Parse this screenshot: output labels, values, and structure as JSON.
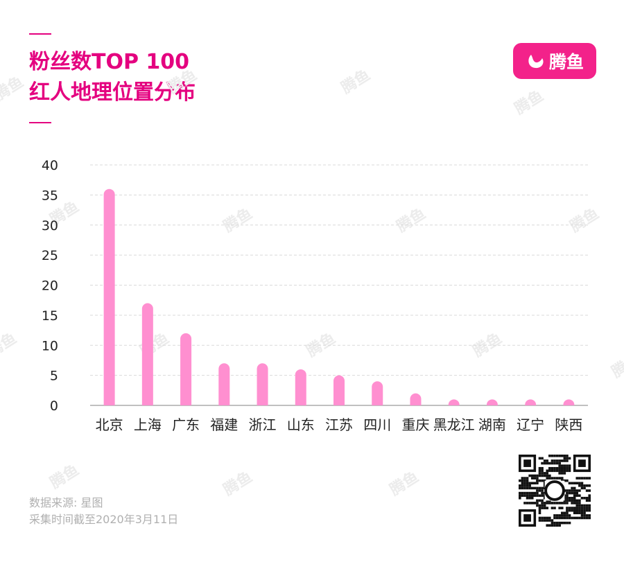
{
  "header": {
    "title_line1": "粉丝数TOP 100",
    "title_line2": "红人地理位置分布"
  },
  "brand": {
    "logo_text": "腾鱼",
    "watermark_text": "腾鱼"
  },
  "footer": {
    "source": "数据来源: 星图",
    "date": "采集时间截至2020年3月11日"
  },
  "colors": {
    "accent": "#e4007f",
    "bar": "#ff8fd0",
    "grid": "#d9d9d9",
    "axis_text": "#222222"
  },
  "chart_data": {
    "type": "bar",
    "categories": [
      "北京",
      "上海",
      "广东",
      "福建",
      "浙江",
      "山东",
      "江苏",
      "四川",
      "重庆",
      "黑龙江",
      "湖南",
      "辽宁",
      "陕西"
    ],
    "values": [
      36,
      17,
      12,
      7,
      7,
      6,
      5,
      4,
      2,
      1,
      1,
      1,
      1
    ],
    "title": "",
    "xlabel": "",
    "ylabel": "",
    "ylim": [
      0,
      40
    ],
    "yticks": [
      0,
      5,
      10,
      15,
      20,
      25,
      30,
      35,
      40
    ],
    "grid": true
  }
}
